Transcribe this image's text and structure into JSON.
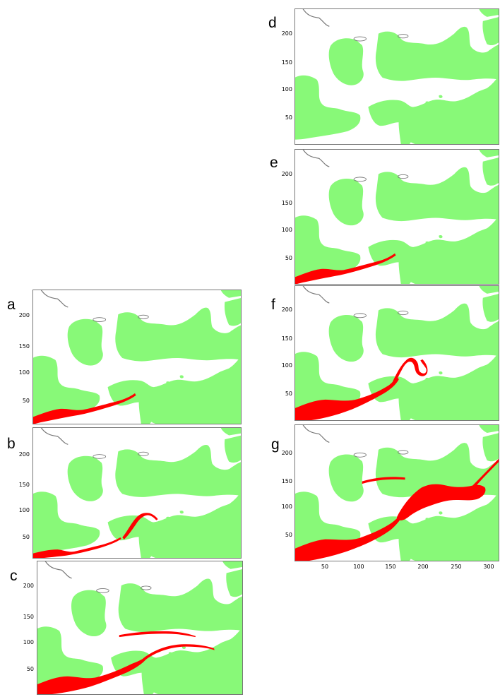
{
  "colors": {
    "land": "#88f978",
    "water": "#ffffff",
    "spill": "#ff0000",
    "frame": "#777777"
  },
  "panels": [
    {
      "id": "a",
      "label": "a",
      "yticks": [
        "200",
        "150",
        "100",
        "50"
      ],
      "spill_stage": 1
    },
    {
      "id": "b",
      "label": "b",
      "yticks": [
        "200",
        "150",
        "100",
        "50"
      ],
      "spill_stage": 2
    },
    {
      "id": "c",
      "label": "c",
      "yticks": [
        "200",
        "150",
        "100",
        "50"
      ],
      "spill_stage": 3
    },
    {
      "id": "d",
      "label": "d",
      "yticks": [
        "200",
        "150",
        "100",
        "50"
      ],
      "spill_stage": 0
    },
    {
      "id": "e",
      "label": "e",
      "yticks": [
        "200",
        "150",
        "100",
        "50"
      ],
      "spill_stage": 1
    },
    {
      "id": "f",
      "label": "f",
      "yticks": [
        "200",
        "150",
        "100",
        "50"
      ],
      "spill_stage": 4
    },
    {
      "id": "g",
      "label": "g",
      "yticks": [
        "200",
        "150",
        "100",
        "50"
      ],
      "spill_stage": 5,
      "xticks": [
        "50",
        "100",
        "150",
        "200",
        "250",
        "300"
      ]
    }
  ]
}
